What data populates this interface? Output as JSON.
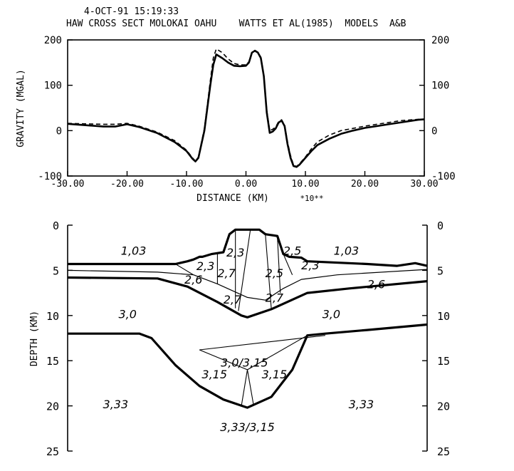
{
  "header": {
    "timestamp": "4-OCT-91 15:19:33",
    "title": "HAW CROSS SECT MOLOKAI OAHU    WATTS ET AL(1985)  MODELS  A&B"
  },
  "chart_data": [
    {
      "type": "line",
      "xlabel": "DISTANCE (KM)",
      "xlabel_suffix": "*10**",
      "ylabel": "GRAVITY (MGAL)",
      "xlim": [
        -30,
        30
      ],
      "ylim": [
        -100,
        200
      ],
      "x_ticks": [
        "-30.00",
        "-20.00",
        "-10.00",
        "0.00",
        "10.00",
        "20.00",
        "30.00"
      ],
      "y_ticks": [
        "-100",
        "0",
        "100",
        "200"
      ],
      "series": [
        {
          "style": "solid",
          "x": [
            -30,
            -27,
            -24,
            -22,
            -20,
            -18,
            -15,
            -12,
            -10,
            -9,
            -8.5,
            -8,
            -7,
            -6,
            -5.5,
            -5,
            -4,
            -3,
            -2,
            -1,
            0,
            0.5,
            1,
            1.5,
            2,
            2.5,
            3,
            3.5,
            4,
            4.5,
            5,
            5.5,
            6,
            6.5,
            7,
            7.5,
            8,
            8.5,
            9,
            10,
            11,
            12,
            14,
            16,
            18,
            20,
            22,
            24,
            26,
            28,
            29,
            30
          ],
          "y": [
            15,
            12,
            9,
            9,
            14,
            8,
            -5,
            -25,
            -45,
            -62,
            -68,
            -60,
            0,
            100,
            145,
            168,
            160,
            150,
            143,
            142,
            143,
            150,
            172,
            176,
            172,
            160,
            120,
            40,
            -5,
            -2,
            5,
            18,
            22,
            10,
            -30,
            -60,
            -78,
            -80,
            -75,
            -60,
            -45,
            -32,
            -18,
            -7,
            0,
            6,
            10,
            14,
            18,
            22,
            24,
            25
          ]
        },
        {
          "style": "dashed",
          "x": [
            -30,
            -27,
            -24,
            -22,
            -20,
            -18,
            -15,
            -12,
            -10,
            -9,
            -8.5,
            -8,
            -7,
            -6,
            -5.5,
            -5,
            -4,
            -3,
            -2,
            -1,
            0,
            0.5,
            1,
            1.5,
            2,
            2.5,
            3,
            3.5,
            4,
            4.5,
            5,
            5.5,
            6,
            6.5,
            7,
            7.5,
            8,
            8.5,
            9,
            10,
            11,
            12,
            14,
            16,
            18,
            20,
            22,
            24,
            26,
            28,
            29,
            30
          ],
          "y": [
            16,
            15,
            14,
            14,
            16,
            10,
            -3,
            -22,
            -43,
            -60,
            -67,
            -58,
            5,
            110,
            160,
            180,
            172,
            158,
            148,
            145,
            145,
            152,
            172,
            177,
            173,
            162,
            122,
            45,
            0,
            3,
            8,
            20,
            24,
            12,
            -25,
            -55,
            -76,
            -79,
            -73,
            -58,
            -40,
            -25,
            -10,
            0,
            5,
            10,
            14,
            18,
            22,
            24,
            25,
            24
          ]
        }
      ]
    },
    {
      "type": "area",
      "ylabel": "DEPTH (KM)",
      "xlim": [
        -30,
        30
      ],
      "ylim": [
        25,
        0
      ],
      "y_ticks": [
        "0",
        "5",
        "10",
        "15",
        "20",
        "25"
      ],
      "boundaries": [
        {
          "name": "topography",
          "weight": "heavy",
          "x": [
            -30,
            -12,
            -10,
            -9,
            -8,
            -7.5,
            -6,
            -4,
            -3,
            -2,
            2,
            3,
            5,
            6,
            7,
            9,
            10,
            20,
            25,
            28,
            30
          ],
          "y": [
            4.3,
            4.3,
            4.0,
            3.8,
            3.5,
            3.5,
            3.2,
            3.0,
            1.0,
            0.5,
            0.5,
            1.0,
            1.2,
            3.2,
            3.5,
            3.6,
            4.0,
            4.3,
            4.5,
            4.2,
            4.5
          ]
        },
        {
          "name": "layer-2.6-top",
          "weight": "light",
          "x": [
            -30,
            -15,
            -9,
            -5,
            0,
            3,
            6,
            9,
            15,
            30
          ],
          "y": [
            5.0,
            5.2,
            5.5,
            6.5,
            8.0,
            8.3,
            7.0,
            6.0,
            5.5,
            4.9
          ]
        },
        {
          "name": "crust-top",
          "weight": "heavy",
          "x": [
            -30,
            -15,
            -10,
            -5,
            -1,
            0,
            4,
            10,
            17,
            30
          ],
          "y": [
            5.8,
            5.9,
            6.8,
            8.5,
            10.0,
            10.2,
            9.3,
            7.5,
            7.0,
            6.2
          ]
        },
        {
          "name": "moho",
          "weight": "heavy",
          "x": [
            -30,
            -18,
            -16,
            -12,
            -8,
            -4,
            0,
            4,
            7.5,
            10,
            13,
            20,
            30
          ],
          "y": [
            12.0,
            12.0,
            12.5,
            15.5,
            17.8,
            19.3,
            20.2,
            19.0,
            16.0,
            12.2,
            12.0,
            11.6,
            11.0
          ]
        }
      ],
      "region_labels": [
        "1,03",
        "2,3",
        "2,3",
        "2,6",
        "2,7",
        "2,7",
        "2,5",
        "2,7",
        "2,5",
        "2,3",
        "1,03",
        "2,6",
        "3,0",
        "3,0",
        "3,0/3,15",
        "3,15",
        "3,15",
        "3,33",
        "3,33",
        "3,33/3,15"
      ]
    }
  ]
}
